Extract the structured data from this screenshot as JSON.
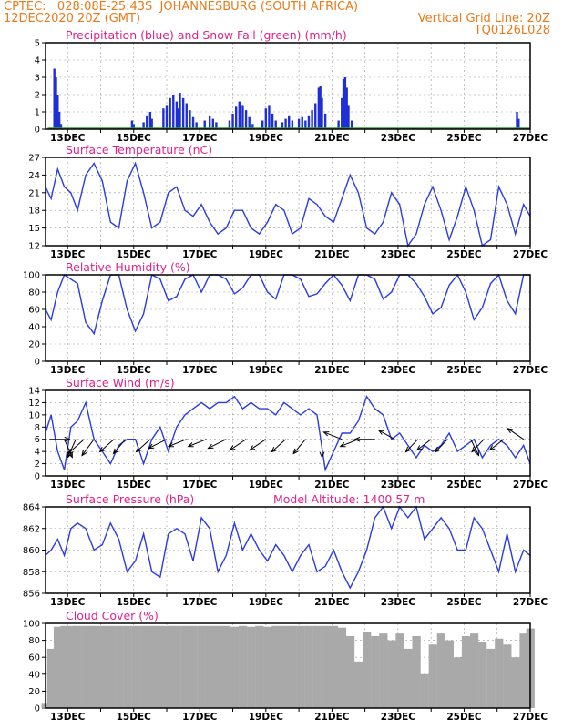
{
  "header": {
    "line1_left": "CPTEC:   028:08E-25:43S  JOHANNESBURG (SOUTH AFRICA)",
    "line2_left": "12DEC2020 20Z (GMT)",
    "line2_right": "Vertical Grid Line: 20Z",
    "line3_right": "TQ0126L028"
  },
  "x_axis": {
    "ticks": [
      "13DEC",
      "15DEC",
      "17DEC",
      "19DEC",
      "21DEC",
      "23DEC",
      "25DEC",
      "27DEC"
    ],
    "tick_days": [
      13,
      15,
      17,
      19,
      21,
      23,
      25,
      27
    ],
    "start_day": 12.333,
    "end_day": 27.0
  },
  "chart_data": [
    {
      "type": "bar",
      "title": "Precipitation (blue) and Snow Fall (green) (mm/h)",
      "ylim": [
        0,
        5
      ],
      "yticks": [
        0,
        1,
        2,
        3,
        4,
        5
      ],
      "colors": {
        "rain": "#1f2fd6",
        "snow": "#2ca02c"
      },
      "series": [
        {
          "name": "Precipitation",
          "points": [
            [
              12.6,
              3.5
            ],
            [
              12.65,
              3.0
            ],
            [
              12.7,
              2.0
            ],
            [
              12.75,
              1.0
            ],
            [
              12.8,
              0.3
            ],
            [
              14.95,
              0.5
            ],
            [
              15.0,
              0.3
            ],
            [
              15.3,
              0.4
            ],
            [
              15.4,
              0.8
            ],
            [
              15.5,
              1.0
            ],
            [
              15.55,
              0.6
            ],
            [
              15.9,
              1.2
            ],
            [
              16.0,
              1.4
            ],
            [
              16.1,
              1.8
            ],
            [
              16.2,
              2.0
            ],
            [
              16.3,
              1.6
            ],
            [
              16.35,
              1.2
            ],
            [
              16.4,
              2.1
            ],
            [
              16.5,
              1.8
            ],
            [
              16.6,
              1.5
            ],
            [
              16.7,
              1.1
            ],
            [
              16.8,
              0.7
            ],
            [
              16.9,
              0.4
            ],
            [
              17.15,
              0.5
            ],
            [
              17.3,
              0.8
            ],
            [
              17.4,
              0.6
            ],
            [
              17.5,
              0.4
            ],
            [
              17.9,
              0.5
            ],
            [
              18.0,
              0.9
            ],
            [
              18.1,
              1.3
            ],
            [
              18.2,
              1.6
            ],
            [
              18.3,
              1.4
            ],
            [
              18.4,
              1.1
            ],
            [
              18.5,
              0.7
            ],
            [
              18.6,
              0.3
            ],
            [
              18.9,
              0.5
            ],
            [
              19.0,
              1.2
            ],
            [
              19.1,
              1.4
            ],
            [
              19.2,
              0.9
            ],
            [
              19.3,
              0.5
            ],
            [
              19.5,
              0.4
            ],
            [
              19.6,
              0.6
            ],
            [
              19.7,
              0.8
            ],
            [
              19.8,
              0.5
            ],
            [
              20.0,
              0.6
            ],
            [
              20.1,
              0.7
            ],
            [
              20.2,
              0.5
            ],
            [
              20.3,
              0.8
            ],
            [
              20.4,
              1.1
            ],
            [
              20.5,
              1.5
            ],
            [
              20.6,
              2.4
            ],
            [
              20.65,
              2.5
            ],
            [
              20.7,
              1.8
            ],
            [
              20.8,
              0.9
            ],
            [
              21.2,
              0.5
            ],
            [
              21.3,
              1.8
            ],
            [
              21.35,
              2.9
            ],
            [
              21.4,
              3.0
            ],
            [
              21.45,
              2.4
            ],
            [
              21.5,
              1.4
            ],
            [
              21.6,
              0.5
            ],
            [
              26.6,
              1.0
            ],
            [
              26.65,
              0.6
            ]
          ]
        },
        {
          "name": "Snow Fall",
          "points": [
            [
              12.4,
              0.05
            ],
            [
              27.0,
              0.05
            ]
          ]
        }
      ]
    },
    {
      "type": "line",
      "title": "Surface Temperature (nC)",
      "ylim": [
        12,
        27
      ],
      "yticks": [
        12,
        15,
        18,
        21,
        24,
        27
      ],
      "color": "#2b3be0",
      "x": [
        12.33,
        12.5,
        12.7,
        12.9,
        13.1,
        13.3,
        13.55,
        13.8,
        14.05,
        14.3,
        14.55,
        14.8,
        15.05,
        15.3,
        15.55,
        15.8,
        16.05,
        16.3,
        16.55,
        16.8,
        17.05,
        17.3,
        17.55,
        17.8,
        18.05,
        18.3,
        18.55,
        18.8,
        19.05,
        19.3,
        19.55,
        19.8,
        20.05,
        20.3,
        20.55,
        20.8,
        21.05,
        21.3,
        21.55,
        21.8,
        22.05,
        22.3,
        22.55,
        22.8,
        23.05,
        23.3,
        23.55,
        23.8,
        24.05,
        24.3,
        24.55,
        24.8,
        25.05,
        25.3,
        25.55,
        25.8,
        26.05,
        26.3,
        26.55,
        26.8,
        27.0
      ],
      "y": [
        22,
        20,
        25,
        22,
        21,
        18,
        24,
        26,
        23,
        16,
        15,
        23,
        26,
        21,
        15,
        16,
        21,
        22,
        18,
        17,
        19,
        16,
        14,
        15,
        18,
        18,
        15,
        14,
        16,
        19,
        18,
        14,
        15,
        20,
        19,
        17,
        16,
        20,
        24,
        21,
        15,
        14,
        16,
        21,
        19,
        12,
        14,
        19,
        22,
        18,
        13,
        17,
        22,
        18,
        12,
        13,
        22,
        19,
        14,
        19,
        17
      ],
      "ylabel": ""
    },
    {
      "type": "line",
      "title": "Relative Humidity (%)",
      "ylim": [
        0,
        100
      ],
      "yticks": [
        0,
        20,
        40,
        60,
        80,
        100
      ],
      "color": "#2b3be0",
      "x": [
        12.33,
        12.5,
        12.7,
        12.9,
        13.1,
        13.3,
        13.55,
        13.8,
        14.05,
        14.3,
        14.55,
        14.8,
        15.05,
        15.3,
        15.55,
        15.8,
        16.05,
        16.3,
        16.55,
        16.8,
        17.05,
        17.3,
        17.55,
        17.8,
        18.05,
        18.3,
        18.55,
        18.8,
        19.05,
        19.3,
        19.55,
        19.8,
        20.05,
        20.3,
        20.55,
        20.8,
        21.05,
        21.3,
        21.55,
        21.8,
        22.05,
        22.3,
        22.55,
        22.8,
        23.05,
        23.3,
        23.55,
        23.8,
        24.05,
        24.3,
        24.55,
        24.8,
        25.05,
        25.3,
        25.55,
        25.8,
        26.05,
        26.3,
        26.55,
        26.8,
        27.0
      ],
      "y": [
        60,
        48,
        80,
        100,
        95,
        90,
        45,
        32,
        70,
        100,
        100,
        60,
        35,
        55,
        100,
        95,
        70,
        75,
        95,
        100,
        80,
        100,
        100,
        95,
        78,
        85,
        100,
        100,
        80,
        72,
        100,
        100,
        95,
        75,
        78,
        90,
        100,
        88,
        70,
        100,
        100,
        95,
        72,
        80,
        100,
        100,
        90,
        75,
        55,
        62,
        88,
        100,
        80,
        48,
        62,
        90,
        100,
        70,
        55,
        100,
        100
      ]
    },
    {
      "type": "line",
      "title": "Surface Wind (m/s)",
      "ylim": [
        0,
        14
      ],
      "yticks": [
        0,
        2,
        4,
        6,
        8,
        10,
        12,
        14
      ],
      "color": "#2b3be0",
      "x": [
        12.33,
        12.5,
        12.7,
        12.9,
        13.1,
        13.3,
        13.55,
        13.8,
        14.05,
        14.3,
        14.55,
        14.8,
        15.05,
        15.3,
        15.55,
        15.8,
        16.05,
        16.3,
        16.55,
        16.8,
        17.05,
        17.3,
        17.55,
        17.8,
        18.05,
        18.3,
        18.55,
        18.8,
        19.05,
        19.3,
        19.55,
        19.8,
        20.05,
        20.3,
        20.55,
        20.8,
        21.05,
        21.3,
        21.55,
        21.8,
        22.05,
        22.3,
        22.55,
        22.8,
        23.05,
        23.3,
        23.55,
        23.8,
        24.05,
        24.3,
        24.55,
        24.8,
        25.05,
        25.3,
        25.55,
        25.8,
        26.05,
        26.3,
        26.55,
        26.8,
        27.0
      ],
      "y": [
        7,
        10,
        4,
        1,
        8,
        9,
        12,
        6,
        4,
        2,
        5,
        6,
        6,
        2,
        6,
        8,
        4,
        8,
        10,
        11,
        12,
        11,
        12,
        12,
        13,
        11,
        12,
        11,
        11,
        10,
        12,
        11,
        10,
        11,
        10,
        1,
        4,
        7,
        7,
        9,
        13,
        11,
        10,
        6,
        7,
        5,
        3,
        5,
        4,
        5,
        7,
        4,
        5,
        6,
        3,
        5,
        6,
        5,
        3,
        5,
        2
      ]
    },
    {
      "type": "line",
      "title": "Surface Pressure (hPa)",
      "subtitle": "Model Altitude: 1400.57 m",
      "ylim": [
        856,
        864
      ],
      "yticks": [
        856,
        858,
        860,
        862,
        864
      ],
      "color": "#2b3be0",
      "x": [
        12.33,
        12.5,
        12.7,
        12.9,
        13.1,
        13.3,
        13.55,
        13.8,
        14.05,
        14.3,
        14.55,
        14.8,
        15.05,
        15.3,
        15.55,
        15.8,
        16.05,
        16.3,
        16.55,
        16.8,
        17.05,
        17.3,
        17.55,
        17.8,
        18.05,
        18.3,
        18.55,
        18.8,
        19.05,
        19.3,
        19.55,
        19.8,
        20.05,
        20.3,
        20.55,
        20.8,
        21.05,
        21.3,
        21.55,
        21.8,
        22.05,
        22.3,
        22.55,
        22.8,
        23.05,
        23.3,
        23.55,
        23.8,
        24.05,
        24.3,
        24.55,
        24.8,
        25.05,
        25.3,
        25.55,
        25.8,
        26.05,
        26.3,
        26.55,
        26.8,
        27.0
      ],
      "y": [
        859.5,
        860,
        861,
        859.5,
        862,
        862.5,
        862,
        860,
        860.5,
        862.5,
        861,
        858,
        859,
        861.5,
        858,
        857.5,
        861.5,
        862,
        861.5,
        859,
        863,
        862,
        858,
        859.5,
        862.5,
        860,
        861.5,
        860,
        859,
        860.5,
        859.5,
        858,
        859.5,
        860.5,
        858,
        858.5,
        860,
        858,
        856.5,
        858,
        860,
        863,
        864,
        862,
        864,
        863,
        864,
        861,
        862,
        863,
        862,
        860,
        860,
        863,
        862,
        860,
        858,
        861.5,
        858,
        860,
        859.5
      ]
    },
    {
      "type": "bar",
      "title": "Cloud Cover (%)",
      "ylim": [
        0,
        100
      ],
      "yticks": [
        0,
        20,
        40,
        60,
        80,
        100
      ],
      "color": "#a9a9a9",
      "x": [
        12.33,
        12.5,
        12.7,
        12.9,
        13.1,
        13.3,
        13.55,
        13.8,
        14.05,
        14.3,
        14.55,
        14.8,
        15.05,
        15.3,
        15.55,
        15.8,
        16.05,
        16.3,
        16.55,
        16.8,
        17.05,
        17.3,
        17.55,
        17.8,
        18.05,
        18.3,
        18.55,
        18.8,
        19.05,
        19.3,
        19.55,
        19.8,
        20.05,
        20.3,
        20.55,
        20.8,
        21.05,
        21.3,
        21.55,
        21.8,
        22.05,
        22.3,
        22.55,
        22.8,
        23.05,
        23.3,
        23.55,
        23.8,
        24.05,
        24.3,
        24.55,
        24.8,
        25.05,
        25.3,
        25.55,
        25.8,
        26.05,
        26.3,
        26.55,
        26.8,
        27.0
      ],
      "y": [
        5,
        70,
        96,
        97,
        97,
        97,
        97,
        97,
        97,
        97,
        97,
        97,
        97,
        97,
        97,
        97,
        97,
        97,
        97,
        97,
        97,
        97,
        97,
        97,
        96,
        97,
        96,
        97,
        96,
        97,
        97,
        97,
        97,
        97,
        97,
        97,
        97,
        95,
        85,
        55,
        90,
        85,
        88,
        80,
        88,
        70,
        85,
        40,
        75,
        88,
        80,
        60,
        85,
        88,
        78,
        70,
        82,
        75,
        60,
        88,
        94
      ]
    }
  ],
  "wind_arrows": [
    {
      "day": 12.45,
      "dx": 1,
      "dy": 0
    },
    {
      "day": 12.9,
      "dx": 0.4,
      "dy": 1
    },
    {
      "day": 13.25,
      "dx": -0.4,
      "dy": 1
    },
    {
      "day": 13.5,
      "dx": -0.8,
      "dy": 0.8
    },
    {
      "day": 13.8,
      "dx": -0.6,
      "dy": 0.9
    },
    {
      "day": 14.4,
      "dx": -0.7,
      "dy": 0.7
    },
    {
      "day": 14.75,
      "dx": -0.6,
      "dy": 0.8
    },
    {
      "day": 15.5,
      "dx": -0.7,
      "dy": 0.7
    },
    {
      "day": 16.0,
      "dx": -0.9,
      "dy": 0.5
    },
    {
      "day": 16.6,
      "dx": -0.9,
      "dy": 0.4
    },
    {
      "day": 17.2,
      "dx": -0.9,
      "dy": 0.4
    },
    {
      "day": 17.8,
      "dx": -0.9,
      "dy": 0.5
    },
    {
      "day": 18.4,
      "dx": -0.8,
      "dy": 0.6
    },
    {
      "day": 19.0,
      "dx": -0.8,
      "dy": 0.6
    },
    {
      "day": 19.6,
      "dx": -0.7,
      "dy": 0.7
    },
    {
      "day": 20.2,
      "dx": -0.6,
      "dy": 0.8
    },
    {
      "day": 20.7,
      "dx": 0,
      "dy": 1
    },
    {
      "day": 21.3,
      "dx": -0.9,
      "dy": -0.4
    },
    {
      "day": 21.8,
      "dx": -0.9,
      "dy": 0.4
    },
    {
      "day": 22.3,
      "dx": -1,
      "dy": 0
    },
    {
      "day": 22.9,
      "dx": -0.8,
      "dy": -0.5
    },
    {
      "day": 23.6,
      "dx": -0.6,
      "dy": 0.7
    },
    {
      "day": 24.0,
      "dx": -0.7,
      "dy": 0.6
    },
    {
      "day": 24.5,
      "dx": -0.6,
      "dy": 0.7
    },
    {
      "day": 25.2,
      "dx": 0.4,
      "dy": 0.9
    },
    {
      "day": 25.6,
      "dx": -0.6,
      "dy": 0.7
    },
    {
      "day": 26.2,
      "dx": -0.7,
      "dy": 0.6
    },
    {
      "day": 26.8,
      "dx": -0.8,
      "dy": -0.6
    }
  ]
}
